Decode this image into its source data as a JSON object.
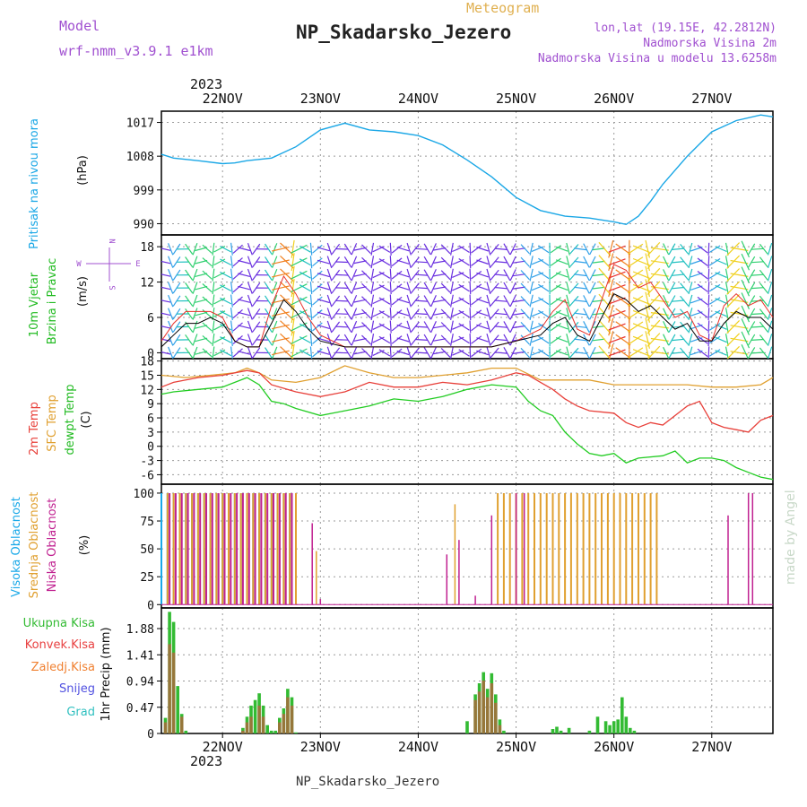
{
  "header": {
    "model_label": "Model",
    "model_name": "wrf-nmm_v3.9.1 e1km",
    "meteogram_label": "Meteogram",
    "station_title": "NP_Skadarsko_Jezero",
    "lonlat": "lon,lat (19.15E, 42.2812N)",
    "altitude": "Nadmorska Visina 2m",
    "model_altitude": "Nadmorska Visina u modelu 13.6258m",
    "year_top": "2023",
    "year_bottom": "2023",
    "footer_station": "NP_Skadarsko_Jezero",
    "watermark": "made by Angel"
  },
  "colors": {
    "pressure": "#1aa7e6",
    "wind_speed": "#000000",
    "wind_gust": "#e8302a",
    "temp_2m": "#e8403a",
    "temp_sfc": "#e0a030",
    "dewpoint": "#22cc22",
    "cloud_high": "#18a8e8",
    "cloud_mid": "#e0a030",
    "cloud_low": "#c02090",
    "precip_total": "#33bb33",
    "precip_conv": "#e84040",
    "precip_frozen": "#f08030",
    "precip_snow": "#5050e0",
    "precip_hail": "#30c0c0",
    "label_purple": "#a050d0",
    "meteogram_label": "#e0b050"
  },
  "x_axis": {
    "days": [
      "22NOV",
      "23NOV",
      "24NOV",
      "25NOV",
      "26NOV",
      "27NOV"
    ],
    "start_hour": -15,
    "end_hour": 135
  },
  "chart_data": [
    {
      "type": "line",
      "panel": "pressure",
      "ylabel_main": "Pritisak na nivou mora",
      "ylabel_unit": "(hPa)",
      "yticks": [
        990,
        999,
        1008,
        1017
      ],
      "ylim": [
        987,
        1020
      ],
      "grid": true,
      "series": [
        {
          "x": [
            -15,
            -12,
            -6,
            0,
            3,
            6,
            12,
            18,
            24,
            30,
            36,
            42,
            48,
            54,
            60,
            66,
            72,
            78,
            84,
            90,
            96,
            99,
            102,
            105,
            108,
            114,
            120,
            126,
            132,
            135
          ],
          "values": [
            1008.5,
            1007.5,
            1006.8,
            1006.0,
            1006.2,
            1006.8,
            1007.5,
            1010.5,
            1015.0,
            1016.8,
            1015.0,
            1014.5,
            1013.5,
            1011.0,
            1007.0,
            1002.5,
            997.0,
            993.5,
            992.0,
            991.5,
            990.5,
            989.8,
            992.0,
            996.0,
            1000.5,
            1008.0,
            1014.5,
            1017.5,
            1019.0,
            1018.5
          ]
        }
      ]
    },
    {
      "type": "line",
      "panel": "wind",
      "ylabel_main": "10m Vjetar",
      "ylabel_sub": "Brzina i Pravac",
      "ylabel_unit": "(m/s)",
      "compass": [
        "N",
        "S",
        "W",
        "E"
      ],
      "yticks": [
        0,
        6,
        12,
        18
      ],
      "ylim": [
        -1,
        20
      ],
      "grid": true,
      "series": [
        {
          "name": "speed",
          "x": [
            -15,
            -12,
            -9,
            -6,
            -3,
            0,
            3,
            6,
            9,
            12,
            15,
            18,
            21,
            24,
            30,
            36,
            42,
            48,
            54,
            60,
            66,
            72,
            78,
            81,
            84,
            87,
            90,
            93,
            96,
            99,
            102,
            105,
            108,
            111,
            114,
            117,
            120,
            123,
            126,
            129,
            132,
            135
          ],
          "values": [
            1,
            3,
            5,
            5,
            6,
            5,
            2,
            1,
            1,
            5,
            9,
            7,
            4,
            2,
            1,
            1,
            1,
            1,
            1,
            1,
            1,
            2,
            3,
            5,
            6,
            3,
            2,
            6,
            10,
            9,
            7,
            8,
            6,
            4,
            5,
            2,
            2,
            5,
            7,
            6,
            6,
            4
          ]
        },
        {
          "name": "gust",
          "x": [
            -15,
            -12,
            -9,
            -6,
            -3,
            0,
            3,
            6,
            9,
            12,
            15,
            18,
            21,
            24,
            30,
            36,
            42,
            48,
            54,
            60,
            66,
            72,
            78,
            81,
            84,
            87,
            90,
            93,
            96,
            99,
            102,
            105,
            108,
            111,
            114,
            117,
            120,
            123,
            126,
            129,
            132,
            135
          ],
          "values": [
            2,
            5,
            7,
            7,
            7,
            6,
            2,
            1,
            1,
            8,
            13,
            10,
            6,
            3,
            1,
            1,
            1,
            1,
            1,
            1,
            1,
            2,
            4,
            7,
            9,
            4,
            3,
            9,
            15,
            14,
            11,
            12,
            9,
            6,
            7,
            3,
            2,
            8,
            10,
            8,
            9,
            6
          ]
        }
      ]
    },
    {
      "type": "line",
      "panel": "temperature",
      "ylabel_main_1": "2m Temp",
      "ylabel_main_2": "SFC Temp",
      "ylabel_main_3": "dewpt Temp",
      "ylabel_unit": "(C)",
      "yticks": [
        -6,
        -3,
        0,
        3,
        6,
        9,
        12,
        15,
        18
      ],
      "ylim": [
        -8,
        18.5
      ],
      "grid": true,
      "series": [
        {
          "name": "2m Temp",
          "x": [
            -15,
            -12,
            -6,
            0,
            6,
            9,
            12,
            18,
            24,
            30,
            36,
            42,
            48,
            54,
            60,
            66,
            72,
            75,
            78,
            81,
            84,
            87,
            90,
            96,
            99,
            102,
            105,
            108,
            114,
            117,
            120,
            123,
            126,
            129,
            132,
            135
          ],
          "values": [
            12.5,
            13.5,
            14.5,
            15.0,
            16.0,
            15.5,
            13.0,
            11.5,
            10.5,
            11.5,
            13.5,
            12.5,
            12.5,
            13.5,
            13.0,
            14.0,
            15.5,
            15.0,
            13.5,
            12.0,
            10.0,
            8.5,
            7.5,
            7.0,
            5.0,
            4.0,
            5.0,
            4.5,
            8.5,
            9.5,
            5.0,
            4.0,
            3.5,
            3.0,
            5.5,
            6.5
          ]
        },
        {
          "name": "SFC Temp",
          "x": [
            -15,
            -9,
            -3,
            3,
            6,
            9,
            12,
            18,
            24,
            30,
            36,
            42,
            48,
            54,
            60,
            66,
            72,
            78,
            84,
            90,
            96,
            102,
            108,
            114,
            120,
            126,
            132,
            135
          ],
          "values": [
            15.0,
            14.5,
            15.0,
            15.5,
            16.5,
            15.5,
            14.0,
            13.5,
            14.5,
            17.0,
            15.5,
            14.5,
            14.5,
            15.0,
            15.5,
            16.5,
            16.5,
            14.0,
            14.0,
            14.0,
            13.0,
            13.0,
            13.0,
            13.0,
            12.5,
            12.5,
            13.0,
            14.5
          ]
        },
        {
          "name": "dewpt Temp",
          "x": [
            -15,
            -12,
            -6,
            0,
            6,
            9,
            12,
            15,
            18,
            24,
            30,
            36,
            42,
            48,
            54,
            60,
            66,
            72,
            75,
            78,
            81,
            84,
            87,
            90,
            93,
            96,
            99,
            102,
            108,
            111,
            114,
            117,
            120,
            123,
            126,
            129,
            132,
            135
          ],
          "values": [
            11.0,
            11.5,
            12.0,
            12.5,
            14.5,
            13.0,
            9.5,
            9.0,
            8.0,
            6.5,
            7.5,
            8.5,
            10.0,
            9.5,
            10.5,
            12.0,
            13.0,
            12.5,
            9.5,
            7.5,
            6.5,
            3.0,
            0.5,
            -1.5,
            -2.0,
            -1.5,
            -3.5,
            -2.5,
            -2.0,
            -1.0,
            -3.5,
            -2.5,
            -2.5,
            -3.0,
            -4.5,
            -5.5,
            -6.5,
            -7.0
          ]
        }
      ]
    },
    {
      "type": "bar",
      "panel": "cloud",
      "ylabel_main_1": "Visoka Oblacnost",
      "ylabel_main_2": "Srednja Oblacnost",
      "ylabel_main_3": "Niska Oblacnost",
      "ylabel_unit": "(%)",
      "yticks": [
        0,
        25,
        50,
        75,
        100
      ],
      "ylim": [
        -3,
        108
      ],
      "grid": true,
      "series": [
        {
          "name": "high",
          "ranges": [
            [
              -15,
              19
            ]
          ],
          "step": 1.5,
          "value": 100
        },
        {
          "name": "mid",
          "ranges": [
            [
              -14,
              19
            ],
            [
              67,
              107
            ]
          ],
          "step": 1.5,
          "value": 100,
          "extra": [
            [
              23,
              48
            ],
            [
              57,
              90
            ]
          ]
        },
        {
          "name": "low",
          "ranges": [
            [
              -14,
              18
            ]
          ],
          "step": 1.5,
          "value": 100,
          "extra": [
            [
              22,
              73
            ],
            [
              24,
              5
            ],
            [
              55,
              45
            ],
            [
              58,
              58
            ],
            [
              62,
              8
            ],
            [
              66,
              80
            ],
            [
              72,
              100
            ],
            [
              74,
              100
            ],
            [
              124,
              80
            ],
            [
              129,
              100
            ],
            [
              130,
              100
            ]
          ]
        }
      ]
    },
    {
      "type": "bar",
      "panel": "precip",
      "legend": [
        "Ukupna Kisa",
        "Konvek.Kisa",
        "Zaledj.Kisa",
        "Snijeg",
        "Grad"
      ],
      "ylabel_main": "1hr Precip (mm)",
      "yticks": [
        0,
        0.47,
        0.94,
        1.41,
        1.88
      ],
      "ylim": [
        0,
        2.25
      ],
      "grid": true,
      "x": [
        -14,
        -13,
        -12,
        -11,
        -10,
        -9,
        5,
        6,
        7,
        8,
        9,
        10,
        11,
        12,
        13,
        14,
        15,
        16,
        17,
        18,
        60,
        62,
        63,
        64,
        65,
        66,
        67,
        68,
        69,
        81,
        82,
        83,
        85,
        90,
        92,
        94,
        95,
        96,
        97,
        98,
        99,
        100,
        101
      ],
      "total": [
        0.28,
        2.18,
        2.0,
        0.85,
        0.35,
        0.05,
        0.1,
        0.3,
        0.5,
        0.6,
        0.72,
        0.5,
        0.15,
        0.05,
        0.05,
        0.28,
        0.45,
        0.8,
        0.65,
        0.02,
        0.22,
        0.7,
        0.9,
        1.1,
        0.8,
        1.08,
        0.7,
        0.25,
        0.05,
        0.08,
        0.12,
        0.05,
        0.1,
        0.05,
        0.3,
        0.22,
        0.15,
        0.22,
        0.25,
        0.65,
        0.3,
        0.1,
        0.05
      ],
      "conv": [
        0.2,
        1.6,
        1.45,
        0.0,
        0.3,
        0.0,
        0.05,
        0.2,
        0.3,
        0.0,
        0.5,
        0.3,
        0.0,
        0.0,
        0.0,
        0.2,
        0.35,
        0.65,
        0.5,
        0.0,
        0.0,
        0.6,
        0.75,
        0.95,
        0.65,
        0.9,
        0.55,
        0.15,
        0.0,
        0.0,
        0.0,
        0.0,
        0.0,
        0.0,
        0.0,
        0.0,
        0.0,
        0.0,
        0.0,
        0.0,
        0.0,
        0.0,
        0.0
      ]
    }
  ]
}
